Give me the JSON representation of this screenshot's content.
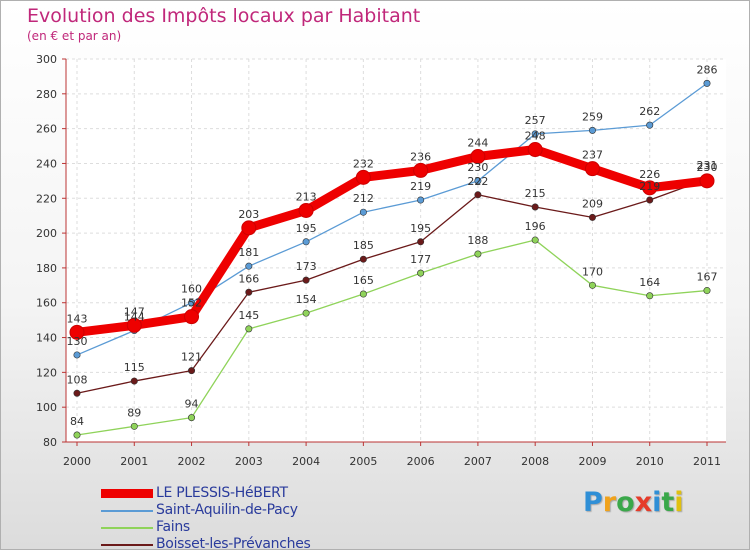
{
  "title": "Evolution des Impôts locaux par Habitant",
  "subtitle": "(en € et par an)",
  "brand": {
    "letters": [
      "P",
      "r",
      "o",
      "x",
      "i",
      "t",
      "i"
    ],
    "colors": [
      "#2f8fd6",
      "#f0a21c",
      "#3aa84a",
      "#e53b2a",
      "#2f8fd6",
      "#3aa84a",
      "#e0c010"
    ]
  },
  "chart_data": {
    "type": "line",
    "title": "Evolution des Impôts locaux par Habitant",
    "subtitle": "(en € et par an)",
    "categories": [
      "2000",
      "2001",
      "2002",
      "2003",
      "2004",
      "2005",
      "2006",
      "2007",
      "2008",
      "2009",
      "2010",
      "2011"
    ],
    "ylim": [
      80,
      300
    ],
    "yticks": [
      80,
      100,
      120,
      140,
      160,
      180,
      200,
      220,
      240,
      260,
      280,
      300
    ],
    "grid": true,
    "legend_position": "bottom-left",
    "series": [
      {
        "name": "LE PLESSIS-HéBERT",
        "color": "#ee0000",
        "emphasis": true,
        "values": [
          143,
          147,
          152,
          203,
          213,
          232,
          236,
          244,
          248,
          237,
          226,
          230
        ],
        "labels": [
          "143",
          "147",
          "152",
          "203",
          "213",
          "232",
          "236",
          "244",
          "248",
          "237",
          "226",
          "230"
        ]
      },
      {
        "name": "Saint-Aquilin-de-Pacy",
        "color": "#5b9bd5",
        "emphasis": false,
        "values": [
          130,
          144,
          160,
          181,
          195,
          212,
          219,
          230,
          257,
          259,
          262,
          286
        ],
        "labels": [
          "130",
          "144",
          "160",
          "181",
          "195",
          "212",
          "219",
          "230",
          "257",
          "259",
          "262",
          "286"
        ]
      },
      {
        "name": "Fains",
        "color": "#8fd35a",
        "emphasis": false,
        "values": [
          84,
          89,
          94,
          145,
          154,
          165,
          177,
          188,
          196,
          170,
          164,
          167
        ],
        "labels": [
          "84",
          "89",
          "94",
          "145",
          "154",
          "165",
          "177",
          "188",
          "196",
          "170",
          "164",
          "167"
        ]
      },
      {
        "name": "Boisset-les-Prévanches",
        "color": "#6b1a1a",
        "emphasis": false,
        "values": [
          108,
          115,
          121,
          166,
          173,
          185,
          195,
          222,
          215,
          209,
          219,
          231
        ],
        "labels": [
          "108",
          "115",
          "121",
          "166",
          "173",
          "185",
          "195",
          "222",
          "215",
          "209",
          "219",
          "231"
        ]
      }
    ]
  }
}
